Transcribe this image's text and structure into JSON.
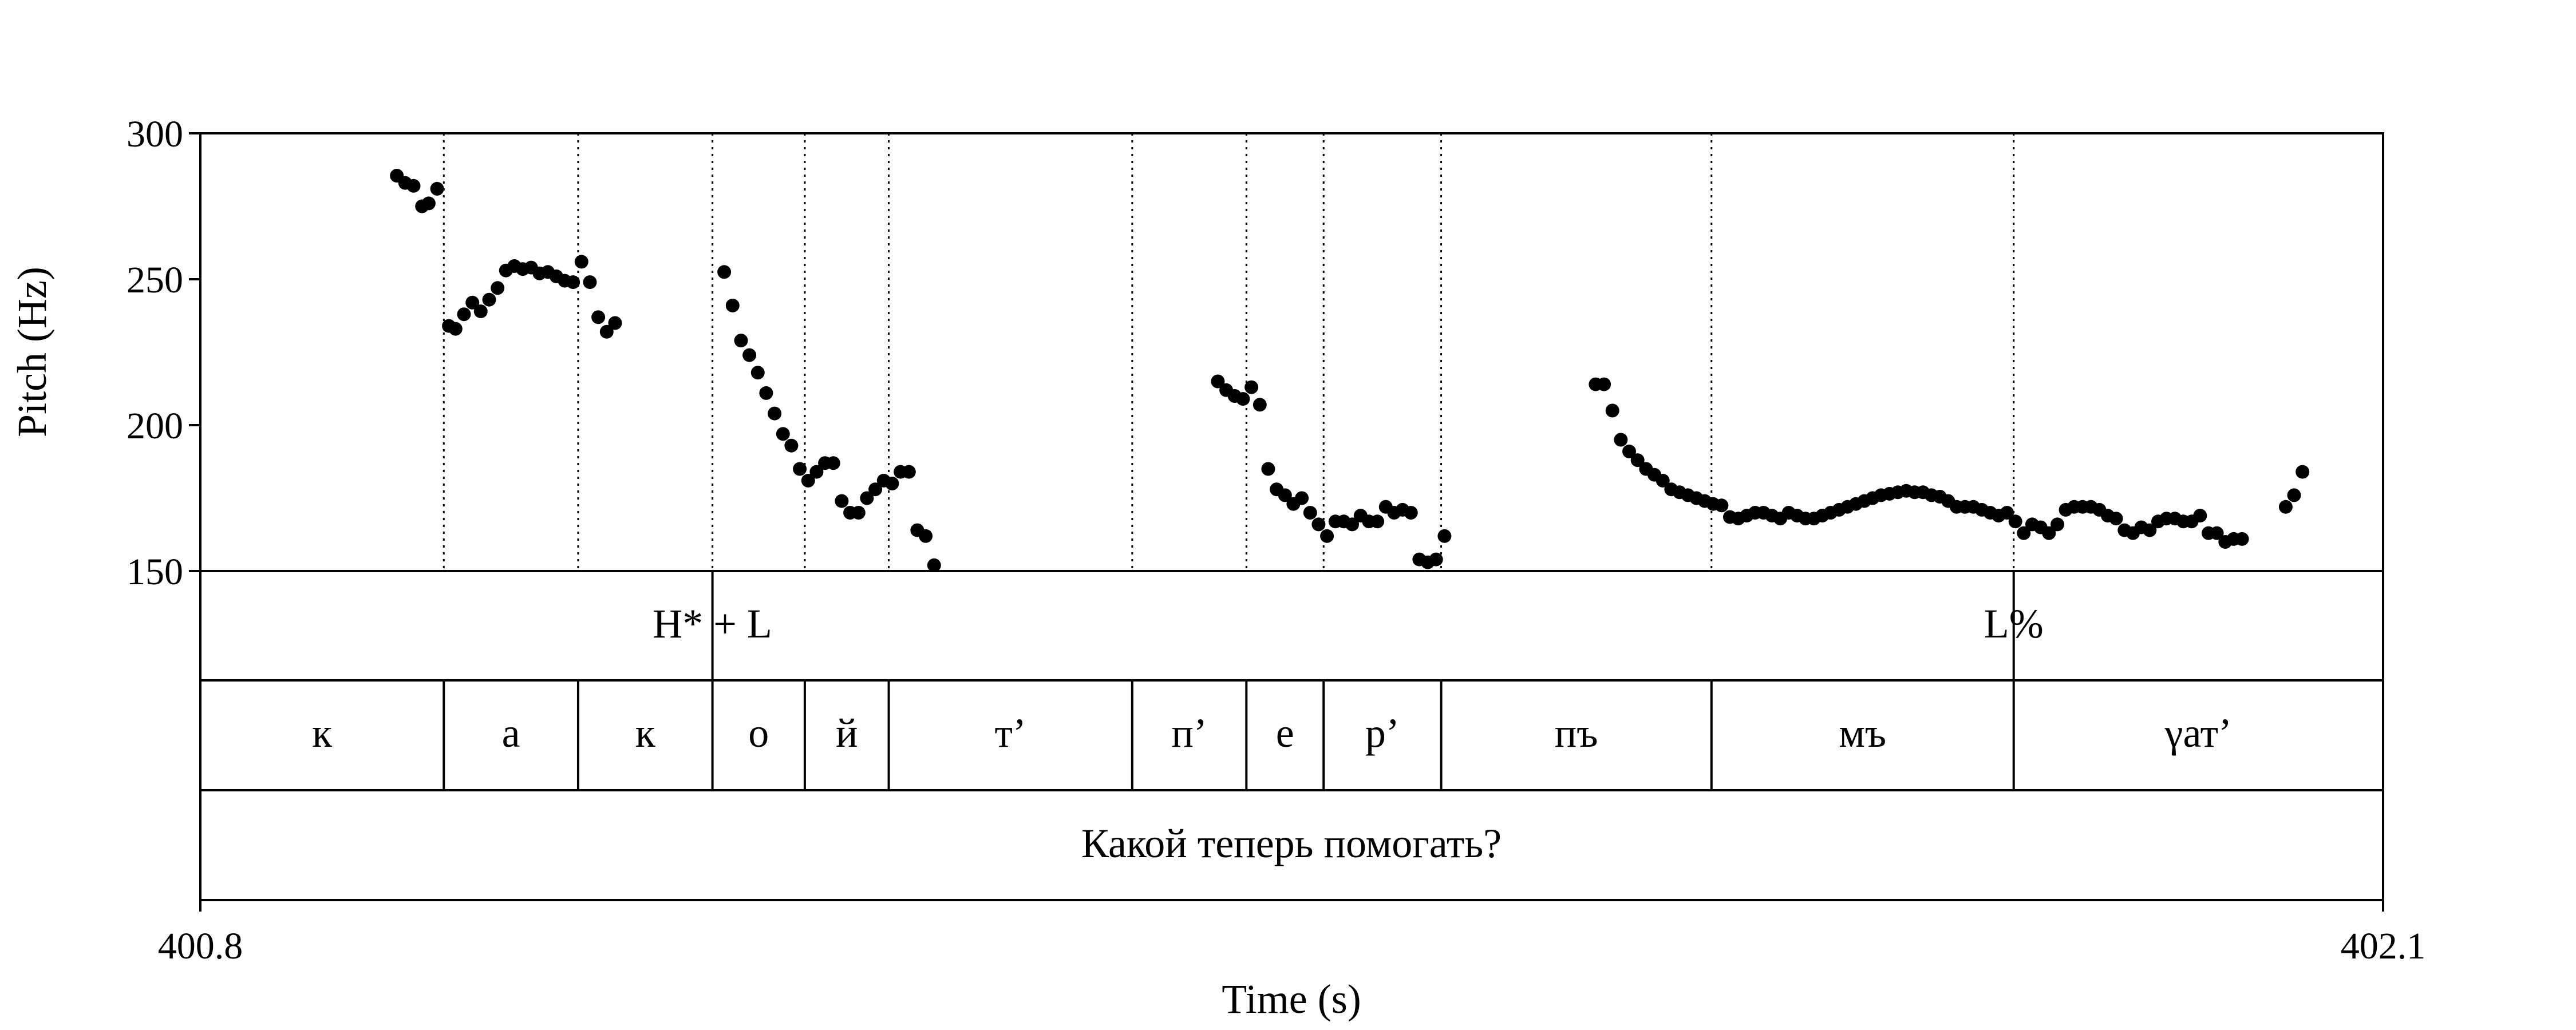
{
  "chart_data": {
    "type": "scatter",
    "xlabel": "Time (s)",
    "ylabel": "Pitch (Hz)",
    "xlim": [
      400.8,
      402.1
    ],
    "ylim": [
      150,
      300
    ],
    "xticks": [
      "400.8",
      "402.1"
    ],
    "yticks": [
      "150",
      "200",
      "250",
      "300"
    ],
    "series": [
      {
        "points": [
          [
            400.917,
            285.5
          ],
          [
            400.922,
            283
          ],
          [
            400.927,
            282
          ],
          [
            400.932,
            275
          ],
          [
            400.936,
            276
          ],
          [
            400.941,
            281
          ],
          [
            400.948,
            234
          ],
          [
            400.952,
            233
          ],
          [
            400.957,
            238
          ],
          [
            400.962,
            242
          ],
          [
            400.967,
            239
          ],
          [
            400.972,
            243
          ],
          [
            400.977,
            247
          ],
          [
            400.982,
            253
          ],
          [
            400.987,
            254.5
          ],
          [
            400.992,
            253.5
          ],
          [
            400.997,
            254
          ],
          [
            401.002,
            252
          ],
          [
            401.007,
            252.5
          ],
          [
            401.012,
            251
          ],
          [
            401.017,
            249.5
          ],
          [
            401.022,
            249
          ],
          [
            401.027,
            256
          ],
          [
            401.032,
            249
          ],
          [
            401.037,
            237
          ],
          [
            401.042,
            232
          ],
          [
            401.047,
            235
          ],
          [
            401.112,
            252.5
          ],
          [
            401.117,
            241
          ],
          [
            401.122,
            229
          ],
          [
            401.127,
            224
          ],
          [
            401.132,
            218
          ],
          [
            401.137,
            211
          ],
          [
            401.142,
            204
          ],
          [
            401.147,
            197
          ],
          [
            401.152,
            193
          ],
          [
            401.157,
            185
          ],
          [
            401.162,
            181
          ],
          [
            401.167,
            184
          ],
          [
            401.172,
            187
          ],
          [
            401.177,
            187
          ],
          [
            401.182,
            174
          ],
          [
            401.187,
            170
          ],
          [
            401.192,
            170
          ],
          [
            401.197,
            175
          ],
          [
            401.202,
            178
          ],
          [
            401.207,
            181
          ],
          [
            401.212,
            180
          ],
          [
            401.217,
            184
          ],
          [
            401.222,
            184
          ],
          [
            401.227,
            164
          ],
          [
            401.232,
            162
          ],
          [
            401.237,
            152
          ],
          [
            401.406,
            215
          ],
          [
            401.411,
            212
          ],
          [
            401.416,
            210
          ],
          [
            401.421,
            209
          ],
          [
            401.426,
            213
          ],
          [
            401.431,
            207
          ],
          [
            401.436,
            185
          ],
          [
            401.441,
            178
          ],
          [
            401.446,
            176
          ],
          [
            401.451,
            173
          ],
          [
            401.456,
            175
          ],
          [
            401.461,
            170
          ],
          [
            401.466,
            166
          ],
          [
            401.471,
            162
          ],
          [
            401.476,
            167
          ],
          [
            401.481,
            167
          ],
          [
            401.486,
            166
          ],
          [
            401.491,
            169
          ],
          [
            401.496,
            167
          ],
          [
            401.501,
            167
          ],
          [
            401.506,
            172
          ],
          [
            401.511,
            170
          ],
          [
            401.516,
            171
          ],
          [
            401.521,
            170
          ],
          [
            401.526,
            154
          ],
          [
            401.531,
            153
          ],
          [
            401.536,
            154
          ],
          [
            401.541,
            162
          ],
          [
            401.631,
            214
          ],
          [
            401.636,
            214
          ],
          [
            401.641,
            205
          ],
          [
            401.646,
            195
          ],
          [
            401.651,
            191
          ],
          [
            401.656,
            188
          ],
          [
            401.661,
            185
          ],
          [
            401.666,
            183
          ],
          [
            401.671,
            181
          ],
          [
            401.676,
            178
          ],
          [
            401.681,
            177
          ],
          [
            401.686,
            176
          ],
          [
            401.691,
            175
          ],
          [
            401.696,
            174
          ],
          [
            401.701,
            173
          ],
          [
            401.706,
            172.5
          ],
          [
            401.711,
            168.5
          ],
          [
            401.716,
            168
          ],
          [
            401.721,
            169
          ],
          [
            401.726,
            170
          ],
          [
            401.731,
            170
          ],
          [
            401.736,
            169
          ],
          [
            401.741,
            168
          ],
          [
            401.746,
            170
          ],
          [
            401.751,
            169
          ],
          [
            401.756,
            168
          ],
          [
            401.761,
            168
          ],
          [
            401.766,
            169
          ],
          [
            401.771,
            170
          ],
          [
            401.776,
            171
          ],
          [
            401.781,
            172
          ],
          [
            401.786,
            173
          ],
          [
            401.791,
            174
          ],
          [
            401.796,
            175
          ],
          [
            401.801,
            176
          ],
          [
            401.806,
            176.5
          ],
          [
            401.811,
            177
          ],
          [
            401.816,
            177.5
          ],
          [
            401.821,
            177
          ],
          [
            401.826,
            177
          ],
          [
            401.831,
            176
          ],
          [
            401.836,
            175.5
          ],
          [
            401.841,
            174
          ],
          [
            401.846,
            172
          ],
          [
            401.851,
            172
          ],
          [
            401.856,
            172
          ],
          [
            401.861,
            171
          ],
          [
            401.866,
            170
          ],
          [
            401.871,
            169
          ],
          [
            401.876,
            170
          ],
          [
            401.881,
            167
          ],
          [
            401.886,
            163
          ],
          [
            401.891,
            166
          ],
          [
            401.896,
            165
          ],
          [
            401.901,
            163
          ],
          [
            401.906,
            166
          ],
          [
            401.911,
            171
          ],
          [
            401.916,
            172
          ],
          [
            401.921,
            172
          ],
          [
            401.926,
            172
          ],
          [
            401.931,
            171
          ],
          [
            401.936,
            169
          ],
          [
            401.941,
            168
          ],
          [
            401.946,
            164
          ],
          [
            401.951,
            163
          ],
          [
            401.956,
            165
          ],
          [
            401.961,
            164
          ],
          [
            401.966,
            167
          ],
          [
            401.971,
            168
          ],
          [
            401.976,
            168
          ],
          [
            401.981,
            167
          ],
          [
            401.986,
            167
          ],
          [
            401.991,
            169
          ],
          [
            401.996,
            163
          ],
          [
            402.001,
            163
          ],
          [
            402.006,
            160
          ],
          [
            402.011,
            161
          ],
          [
            402.016,
            161
          ],
          [
            402.042,
            172
          ],
          [
            402.047,
            176
          ],
          [
            402.052,
            184
          ]
        ]
      }
    ],
    "vertical_guides": [
      400.945,
      401.025,
      401.105,
      401.16,
      401.21,
      401.355,
      401.423,
      401.469,
      401.539,
      401.7,
      401.88
    ]
  },
  "tiers": {
    "tones": [
      {
        "label": "H* + L",
        "at": 401.105
      },
      {
        "label": "L%",
        "at": 401.88
      }
    ],
    "segments": [
      {
        "label": "к",
        "start": 400.8,
        "end": 400.945
      },
      {
        "label": "а",
        "start": 400.945,
        "end": 401.025
      },
      {
        "label": "к",
        "start": 401.025,
        "end": 401.105
      },
      {
        "label": "о",
        "start": 401.105,
        "end": 401.16
      },
      {
        "label": "й",
        "start": 401.16,
        "end": 401.21
      },
      {
        "label": "т’",
        "start": 401.21,
        "end": 401.355
      },
      {
        "label": "п’",
        "start": 401.355,
        "end": 401.423
      },
      {
        "label": "е",
        "start": 401.423,
        "end": 401.469
      },
      {
        "label": "р’",
        "start": 401.469,
        "end": 401.539
      },
      {
        "label": "пъ",
        "start": 401.539,
        "end": 401.7
      },
      {
        "label": "мъ",
        "start": 401.7,
        "end": 401.88
      },
      {
        "label": "γат’",
        "start": 401.88,
        "end": 402.1
      }
    ],
    "sentence": "Какой теперь помогать?"
  }
}
